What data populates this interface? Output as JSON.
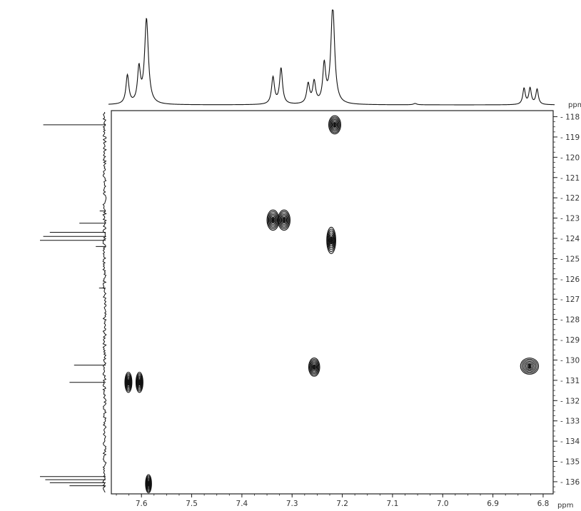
{
  "chart_data": {
    "type": "heatmap",
    "x_unit": "ppm",
    "y_unit": "ppm",
    "x_axis": {
      "range": [
        7.66,
        6.78
      ],
      "reversed": true,
      "ticks": [
        {
          "value": 7.6,
          "label": "7.6"
        },
        {
          "value": 7.5,
          "label": "7.5"
        },
        {
          "value": 7.4,
          "label": "7.4"
        },
        {
          "value": 7.3,
          "label": "7.3"
        },
        {
          "value": 7.2,
          "label": "7.2"
        },
        {
          "value": 7.1,
          "label": "7.1"
        },
        {
          "value": 7.0,
          "label": "7.0"
        },
        {
          "value": 6.9,
          "label": "6.9"
        },
        {
          "value": 6.8,
          "label": "6.8"
        }
      ]
    },
    "y_axis": {
      "range": [
        117.7,
        136.6
      ],
      "ticks": [
        {
          "value": 118,
          "label": "118"
        },
        {
          "value": 119,
          "label": "119"
        },
        {
          "value": 120,
          "label": "120"
        },
        {
          "value": 121,
          "label": "121"
        },
        {
          "value": 122,
          "label": "122"
        },
        {
          "value": 123,
          "label": "123"
        },
        {
          "value": 124,
          "label": "124"
        },
        {
          "value": 125,
          "label": "125"
        },
        {
          "value": 126,
          "label": "126"
        },
        {
          "value": 127,
          "label": "127"
        },
        {
          "value": 128,
          "label": "128"
        },
        {
          "value": 129,
          "label": "129"
        },
        {
          "value": 130,
          "label": "130"
        },
        {
          "value": 131,
          "label": "131"
        },
        {
          "value": 132,
          "label": "132"
        },
        {
          "value": 133,
          "label": "133"
        },
        {
          "value": 134,
          "label": "134"
        },
        {
          "value": 135,
          "label": "135"
        },
        {
          "value": 136,
          "label": "136"
        }
      ]
    },
    "cross_peaks": [
      {
        "x": 7.215,
        "y": 118.4,
        "wx": 0.012,
        "wy": 0.45
      },
      {
        "x": 7.338,
        "y": 123.1,
        "wx": 0.012,
        "wy": 0.5
      },
      {
        "x": 7.316,
        "y": 123.1,
        "wx": 0.012,
        "wy": 0.5
      },
      {
        "x": 7.222,
        "y": 124.1,
        "wx": 0.009,
        "wy": 0.65
      },
      {
        "x": 7.256,
        "y": 130.35,
        "wx": 0.011,
        "wy": 0.45
      },
      {
        "x": 6.827,
        "y": 130.3,
        "wx": 0.018,
        "wy": 0.4
      },
      {
        "x": 7.626,
        "y": 131.1,
        "wx": 0.007,
        "wy": 0.5
      },
      {
        "x": 7.604,
        "y": 131.1,
        "wx": 0.007,
        "wy": 0.5
      },
      {
        "x": 7.586,
        "y": 136.1,
        "wx": 0.006,
        "wy": 0.45
      }
    ],
    "h1_projection": [
      {
        "x": 7.628,
        "h": 0.32,
        "w": 0.0035
      },
      {
        "x": 7.605,
        "h": 0.38,
        "w": 0.0035
      },
      {
        "x": 7.59,
        "h": 0.95,
        "w": 0.0045
      },
      {
        "x": 7.338,
        "h": 0.3,
        "w": 0.0035
      },
      {
        "x": 7.322,
        "h": 0.4,
        "w": 0.0035
      },
      {
        "x": 7.268,
        "h": 0.22,
        "w": 0.0035
      },
      {
        "x": 7.256,
        "h": 0.24,
        "w": 0.0035
      },
      {
        "x": 7.236,
        "h": 0.42,
        "w": 0.0035
      },
      {
        "x": 7.219,
        "h": 1.1,
        "w": 0.0045
      },
      {
        "x": 7.055,
        "h": 0.015,
        "w": 0.004
      },
      {
        "x": 6.838,
        "h": 0.18,
        "w": 0.003
      },
      {
        "x": 6.826,
        "h": 0.18,
        "w": 0.003
      },
      {
        "x": 6.812,
        "h": 0.17,
        "w": 0.003
      }
    ],
    "c13_projection": [
      {
        "y": 118.4,
        "h": 0.95
      },
      {
        "y": 122.65,
        "h": 0.09
      },
      {
        "y": 123.25,
        "h": 0.4
      },
      {
        "y": 123.7,
        "h": 0.85
      },
      {
        "y": 123.9,
        "h": 0.95
      },
      {
        "y": 124.1,
        "h": 1.0
      },
      {
        "y": 124.4,
        "h": 0.15
      },
      {
        "y": 126.45,
        "h": 0.1
      },
      {
        "y": 130.25,
        "h": 0.48
      },
      {
        "y": 131.1,
        "h": 0.55
      },
      {
        "y": 135.75,
        "h": 1.0
      },
      {
        "y": 135.9,
        "h": 0.92
      },
      {
        "y": 136.05,
        "h": 0.85
      },
      {
        "y": 136.2,
        "h": 0.55
      }
    ],
    "grid": false,
    "legend": "none"
  }
}
